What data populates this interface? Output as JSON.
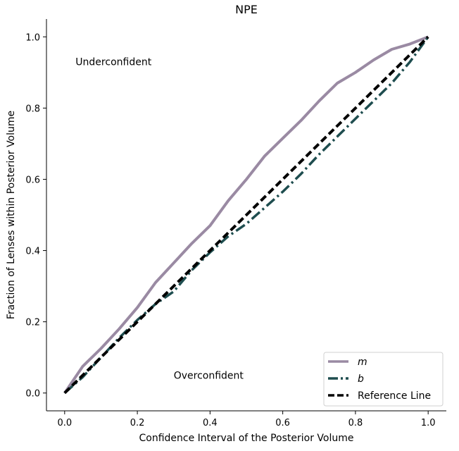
{
  "chart_data": {
    "type": "line",
    "title": "NPE",
    "xlabel": "Confidence Interval of the Posterior Volume",
    "ylabel": "Fraction of Lenses within Posterior Volume",
    "xlim": [
      -0.05,
      1.05
    ],
    "ylim": [
      -0.05,
      1.05
    ],
    "xticks": [
      "0.0",
      "0.2",
      "0.4",
      "0.6",
      "0.8",
      "1.0"
    ],
    "yticks": [
      "0.0",
      "0.2",
      "0.4",
      "0.6",
      "0.8",
      "1.0"
    ],
    "grid": false,
    "legend_position": "bottom-right",
    "annotations": [
      {
        "text": "Underconfident",
        "x": 0.03,
        "y": 0.93
      },
      {
        "text": "Overconfident",
        "x": 0.3,
        "y": 0.05
      }
    ],
    "series": [
      {
        "name": "m",
        "color": "#9a8aa3",
        "style": "solid",
        "x": [
          0.0,
          0.05,
          0.1,
          0.15,
          0.2,
          0.25,
          0.3,
          0.35,
          0.4,
          0.45,
          0.5,
          0.55,
          0.6,
          0.65,
          0.7,
          0.75,
          0.8,
          0.85,
          0.9,
          0.95,
          1.0
        ],
        "y": [
          0.0,
          0.075,
          0.125,
          0.18,
          0.24,
          0.31,
          0.365,
          0.42,
          0.47,
          0.54,
          0.6,
          0.665,
          0.715,
          0.765,
          0.82,
          0.87,
          0.9,
          0.935,
          0.965,
          0.98,
          1.0
        ]
      },
      {
        "name": "b",
        "color": "#1e4d4f",
        "style": "dashdot",
        "x": [
          0.0,
          0.05,
          0.1,
          0.15,
          0.2,
          0.25,
          0.3,
          0.35,
          0.4,
          0.45,
          0.5,
          0.55,
          0.6,
          0.65,
          0.7,
          0.75,
          0.8,
          0.85,
          0.9,
          0.95,
          1.0
        ],
        "y": [
          0.0,
          0.045,
          0.1,
          0.155,
          0.205,
          0.25,
          0.285,
          0.345,
          0.395,
          0.44,
          0.475,
          0.52,
          0.565,
          0.615,
          0.67,
          0.72,
          0.77,
          0.82,
          0.87,
          0.93,
          1.0
        ]
      },
      {
        "name": "Reference Line",
        "color": "#000000",
        "style": "dashed",
        "x": [
          0.0,
          1.0
        ],
        "y": [
          0.0,
          1.0
        ]
      }
    ]
  }
}
